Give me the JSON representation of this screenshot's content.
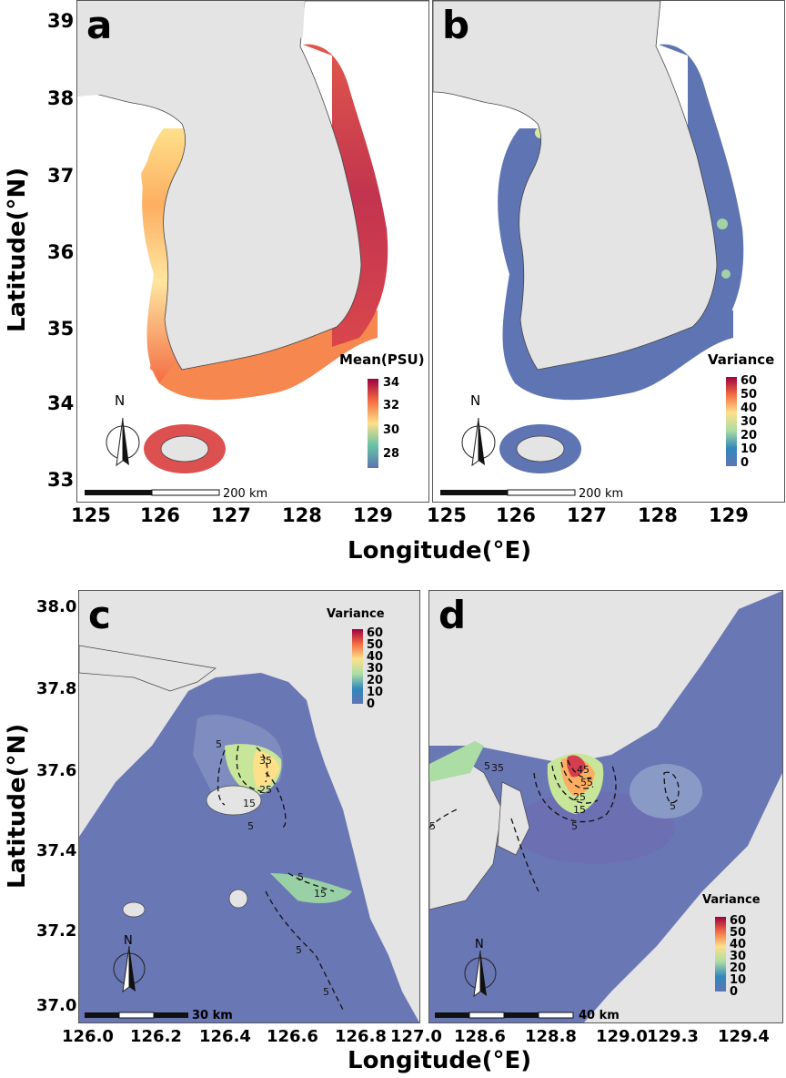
{
  "panels": {
    "a": {
      "label": "a",
      "legend_title": "Mean(PSU)",
      "legend_ticks": [
        "34",
        "32",
        "30",
        "28"
      ],
      "scale_label": "200 km",
      "north": "N"
    },
    "b": {
      "label": "b",
      "legend_title": "Variance",
      "legend_ticks": [
        "60",
        "50",
        "40",
        "30",
        "20",
        "10",
        "0"
      ],
      "scale_label": "200 km",
      "north": "N"
    },
    "c": {
      "label": "c",
      "legend_title": "Variance",
      "legend_ticks": [
        "60",
        "50",
        "40",
        "30",
        "20",
        "10",
        "0"
      ],
      "scale_label": "30 km",
      "north": "N",
      "contour_labels": [
        "5",
        "15",
        "25",
        "35",
        "5",
        "5",
        "15",
        "5",
        "5"
      ]
    },
    "d": {
      "label": "d",
      "legend_title": "Variance",
      "legend_ticks": [
        "60",
        "50",
        "40",
        "30",
        "20",
        "10",
        "0"
      ],
      "scale_label": "40 km",
      "north": "N",
      "contour_labels": [
        "5",
        "5",
        "35",
        "45",
        "55",
        "25",
        "15",
        "5",
        "5"
      ]
    }
  },
  "top_axes": {
    "y_ticks": [
      "39",
      "38",
      "37",
      "36",
      "35",
      "34",
      "33"
    ],
    "x_ticks_a": [
      "125",
      "126",
      "127",
      "128",
      "129"
    ],
    "x_ticks_b": [
      "125",
      "126",
      "127",
      "128",
      "129"
    ],
    "x_title": "Longitude(°E)",
    "y_title": "Latitude(°N)"
  },
  "bottom_axes": {
    "y_ticks": [
      "38.0",
      "37.8",
      "37.6",
      "37.4",
      "37.2",
      "37.0"
    ],
    "x_ticks_c": [
      "126.0",
      "126.2",
      "126.4",
      "126.6",
      "126.8",
      "127.0"
    ],
    "x_ticks_d": [
      "128.6",
      "128.8",
      "129.0",
      "129.3",
      "129.4"
    ],
    "x_title": "Longitude(°E)",
    "y_title": "Latitude(°N)"
  },
  "colors": {
    "land": "#e4e4e4",
    "sea_low": "#5e74b3",
    "salinity_scale": [
      "#d53e4f",
      "#f46d43",
      "#fdae61",
      "#fee08b",
      "#e6f598",
      "#abdda4",
      "#66c2a5",
      "#3288bd",
      "#5e4fa2"
    ],
    "variance_scale": [
      "#9e0142",
      "#d53e4f",
      "#f46d43",
      "#fdae61",
      "#fee08b",
      "#abdda4",
      "#66c2a5",
      "#3288bd",
      "#5e74b3"
    ]
  }
}
